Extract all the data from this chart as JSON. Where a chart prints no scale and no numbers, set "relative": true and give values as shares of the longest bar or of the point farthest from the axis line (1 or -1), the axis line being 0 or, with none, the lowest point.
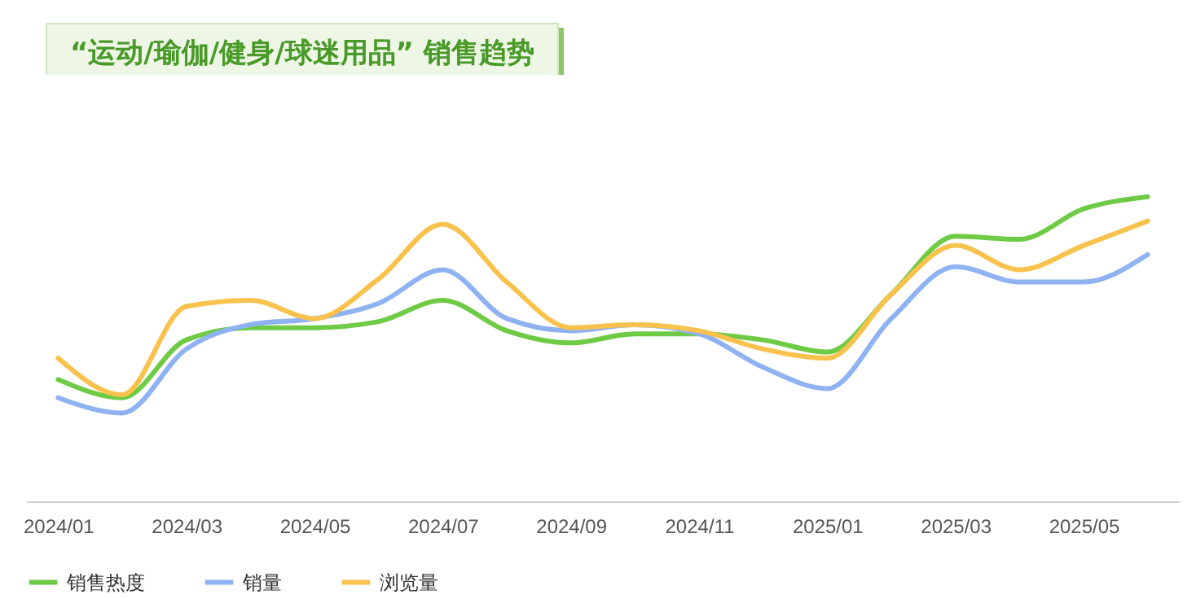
{
  "chart_data": {
    "type": "line",
    "title": "“运动/瑜伽/健身/球迷用品” 销售趋势",
    "relative": true,
    "categories": [
      "2024/01",
      null,
      "2024/03",
      null,
      "2024/05",
      null,
      "2024/07",
      null,
      "2024/09",
      null,
      "2024/11",
      null,
      "2025/01",
      null,
      "2025/03",
      null,
      "2025/05",
      null
    ],
    "series": [
      {
        "name": "销售热度",
        "color": "#6fcb45",
        "values": [
          0.4,
          0.34,
          0.53,
          0.57,
          0.57,
          0.59,
          0.66,
          0.56,
          0.52,
          0.55,
          0.55,
          0.53,
          0.49,
          0.68,
          0.87,
          0.86,
          0.96,
          1
        ]
      },
      {
        "name": "销量",
        "color": "#8fb2f2",
        "values": [
          0.34,
          0.29,
          0.5,
          0.58,
          0.6,
          0.65,
          0.76,
          0.6,
          0.56,
          0.58,
          0.55,
          0.44,
          0.37,
          0.6,
          0.77,
          0.72,
          0.72,
          0.81
        ]
      },
      {
        "name": "浏览量",
        "color": "#f8c24c",
        "values": [
          0.47,
          0.35,
          0.64,
          0.66,
          0.6,
          0.73,
          0.91,
          0.72,
          0.57,
          0.58,
          0.56,
          0.5,
          0.47,
          0.68,
          0.84,
          0.76,
          0.84,
          0.92
        ]
      }
    ],
    "legend": "bottom",
    "grid": false
  }
}
